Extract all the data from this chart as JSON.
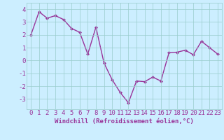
{
  "x": [
    0,
    1,
    2,
    3,
    4,
    5,
    6,
    7,
    8,
    9,
    10,
    11,
    12,
    13,
    14,
    15,
    16,
    17,
    18,
    19,
    20,
    21,
    22,
    23
  ],
  "y": [
    2.0,
    3.8,
    3.3,
    3.5,
    3.2,
    2.5,
    2.2,
    0.5,
    2.6,
    -0.2,
    -1.5,
    -2.5,
    -3.3,
    -1.6,
    -1.65,
    -1.3,
    -1.6,
    0.6,
    0.65,
    0.8,
    0.45,
    1.5,
    1.0,
    0.5
  ],
  "line_color": "#993399",
  "marker": "D",
  "markersize": 2,
  "linewidth": 1.0,
  "xlabel": "Windchill (Refroidissement éolien,°C)",
  "xlim": [
    -0.5,
    23.5
  ],
  "ylim": [
    -3.8,
    4.5
  ],
  "yticks": [
    -3,
    -2,
    -1,
    0,
    1,
    2,
    3,
    4
  ],
  "xticks": [
    0,
    1,
    2,
    3,
    4,
    5,
    6,
    7,
    8,
    9,
    10,
    11,
    12,
    13,
    14,
    15,
    16,
    17,
    18,
    19,
    20,
    21,
    22,
    23
  ],
  "background_color": "#cceeff",
  "grid_color": "#99cccc",
  "tick_color": "#993399",
  "xlabel_color": "#993399",
  "xlabel_fontsize": 6.5,
  "tick_fontsize": 6.5
}
